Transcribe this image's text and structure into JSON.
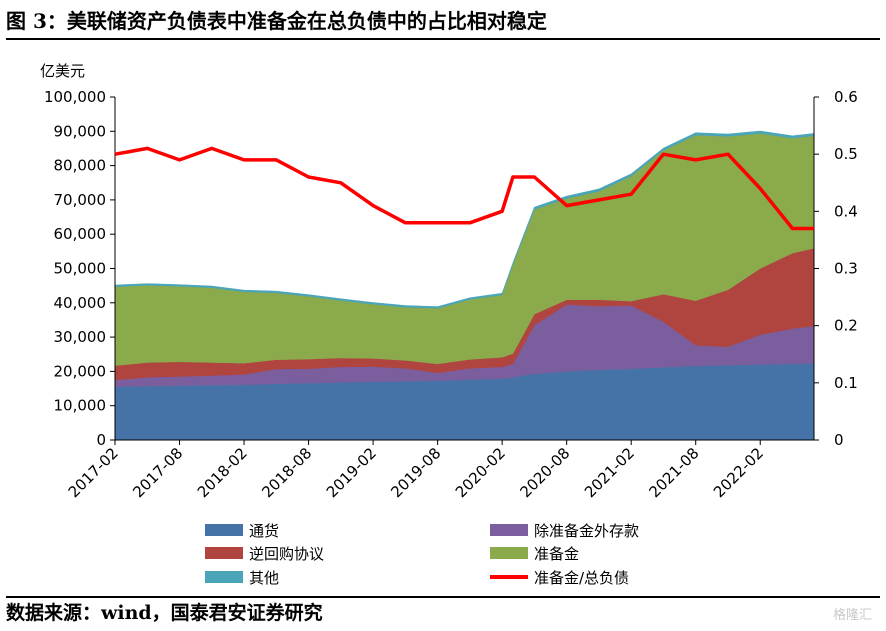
{
  "title": "图 3：美联储资产负债表中准备金在总负债中的占比相对稳定",
  "source": "数据来源：wind，国泰君安证券研究",
  "watermark": "格隆汇",
  "chart_data": {
    "type": "area",
    "stacked": true,
    "ylabel": "亿美元",
    "ylim": [
      0,
      100000
    ],
    "y_ticks": [
      "0",
      "10,000",
      "20,000",
      "30,000",
      "40,000",
      "50,000",
      "60,000",
      "70,000",
      "80,000",
      "90,000",
      "100,000"
    ],
    "y2lim": [
      0,
      0.6
    ],
    "y2_ticks": [
      "0",
      "0.1",
      "0.2",
      "0.3",
      "0.4",
      "0.5",
      "0.6"
    ],
    "x_ticks": [
      "2017-02",
      "2017-08",
      "2018-02",
      "2018-08",
      "2019-02",
      "2019-08",
      "2020-02",
      "2020-08",
      "2021-02",
      "2021-08",
      "2022-02"
    ],
    "x": [
      "2017-02",
      "2017-05",
      "2017-08",
      "2017-11",
      "2018-02",
      "2018-05",
      "2018-08",
      "2018-11",
      "2019-02",
      "2019-05",
      "2019-08",
      "2019-11",
      "2020-02",
      "2020-03",
      "2020-05",
      "2020-08",
      "2020-11",
      "2021-02",
      "2021-05",
      "2021-08",
      "2021-11",
      "2022-02",
      "2022-05",
      "2022-07"
    ],
    "legend_position": "bottom",
    "series": [
      {
        "name": "通货",
        "color": "#4573a7",
        "values": [
          15500,
          15700,
          15900,
          16000,
          16100,
          16400,
          16600,
          16800,
          17000,
          17100,
          17300,
          17600,
          17900,
          18300,
          19300,
          20000,
          20500,
          20800,
          21200,
          21600,
          21800,
          22000,
          22200,
          22400
        ]
      },
      {
        "name": "除准备金外存款",
        "color": "#7b5e9e",
        "values": [
          2000,
          2600,
          2600,
          2800,
          3000,
          4300,
          4200,
          4500,
          4400,
          3800,
          2300,
          3300,
          3400,
          3900,
          14200,
          19500,
          18500,
          18400,
          13300,
          6000,
          5400,
          8700,
          10300,
          10800
        ]
      },
      {
        "name": "逆回购协议",
        "color": "#b0443f",
        "values": [
          4200,
          4300,
          4300,
          3800,
          3300,
          2700,
          2800,
          2600,
          2400,
          2300,
          2600,
          2600,
          2800,
          3000,
          3200,
          1400,
          1900,
          1300,
          8000,
          13000,
          16600,
          19300,
          22000,
          22700
        ]
      },
      {
        "name": "准备金",
        "color": "#8aaa4b",
        "values": [
          23000,
          22500,
          22000,
          21800,
          20800,
          19500,
          18300,
          16800,
          15800,
          15500,
          16200,
          17500,
          18200,
          26000,
          30500,
          29500,
          31600,
          36400,
          41900,
          48300,
          44700,
          39400,
          33500,
          32800
        ]
      },
      {
        "name": "其他",
        "color": "#4aa5b8",
        "values": [
          500,
          500,
          500,
          500,
          500,
          500,
          500,
          500,
          500,
          500,
          500,
          500,
          500,
          500,
          700,
          700,
          700,
          700,
          700,
          700,
          700,
          700,
          700,
          700
        ]
      }
    ],
    "line_series": {
      "name": "准备金/总负债",
      "color": "#ff0000",
      "axis": "right",
      "values": [
        0.5,
        0.51,
        0.49,
        0.51,
        0.49,
        0.49,
        0.46,
        0.45,
        0.41,
        0.38,
        0.38,
        0.38,
        0.4,
        0.46,
        0.46,
        0.41,
        0.42,
        0.43,
        0.5,
        0.49,
        0.5,
        0.44,
        0.37,
        0.37
      ]
    }
  }
}
